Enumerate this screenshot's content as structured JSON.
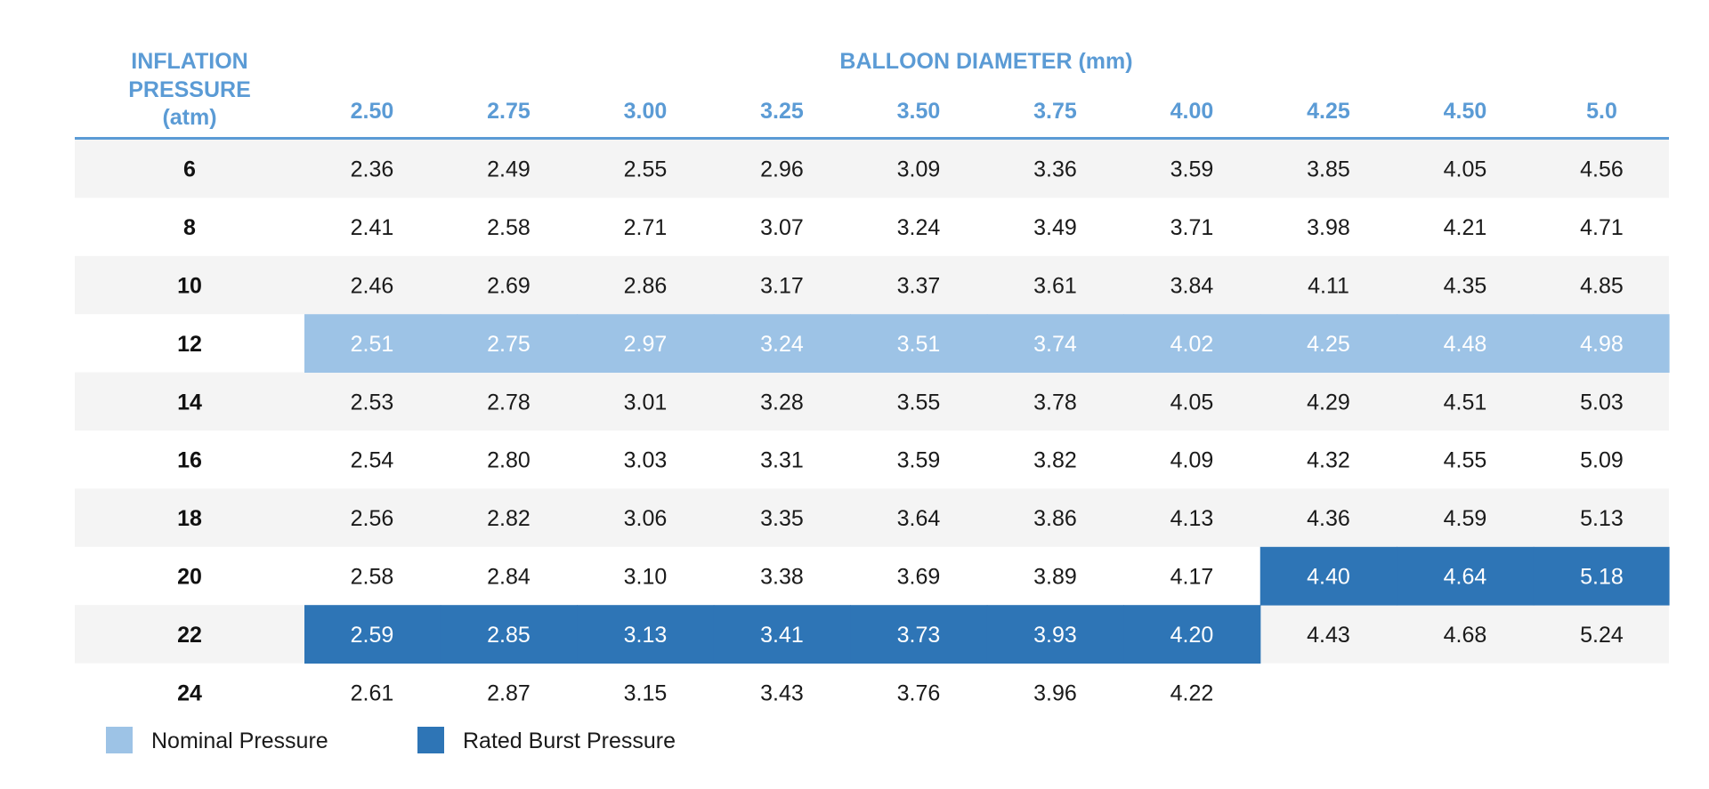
{
  "chart_data": {
    "type": "table",
    "row_header_label": [
      "INFLATION",
      "PRESSURE",
      "(atm)"
    ],
    "column_group_label": "BALLOON DIAMETER (mm)",
    "columns": [
      "2.50",
      "2.75",
      "3.00",
      "3.25",
      "3.50",
      "3.75",
      "4.00",
      "4.25",
      "4.50",
      "5.0"
    ],
    "rows": [
      {
        "pressure": "6",
        "values": [
          "2.36",
          "2.49",
          "2.55",
          "2.96",
          "3.09",
          "3.36",
          "3.59",
          "3.85",
          "4.05",
          "4.56"
        ]
      },
      {
        "pressure": "8",
        "values": [
          "2.41",
          "2.58",
          "2.71",
          "3.07",
          "3.24",
          "3.49",
          "3.71",
          "3.98",
          "4.21",
          "4.71"
        ]
      },
      {
        "pressure": "10",
        "values": [
          "2.46",
          "2.69",
          "2.86",
          "3.17",
          "3.37",
          "3.61",
          "3.84",
          "4.11",
          "4.35",
          "4.85"
        ]
      },
      {
        "pressure": "12",
        "values": [
          "2.51",
          "2.75",
          "2.97",
          "3.24",
          "3.51",
          "3.74",
          "4.02",
          "4.25",
          "4.48",
          "4.98"
        ]
      },
      {
        "pressure": "14",
        "values": [
          "2.53",
          "2.78",
          "3.01",
          "3.28",
          "3.55",
          "3.78",
          "4.05",
          "4.29",
          "4.51",
          "5.03"
        ]
      },
      {
        "pressure": "16",
        "values": [
          "2.54",
          "2.80",
          "3.03",
          "3.31",
          "3.59",
          "3.82",
          "4.09",
          "4.32",
          "4.55",
          "5.09"
        ]
      },
      {
        "pressure": "18",
        "values": [
          "2.56",
          "2.82",
          "3.06",
          "3.35",
          "3.64",
          "3.86",
          "4.13",
          "4.36",
          "4.59",
          "5.13"
        ]
      },
      {
        "pressure": "20",
        "values": [
          "2.58",
          "2.84",
          "3.10",
          "3.38",
          "3.69",
          "3.89",
          "4.17",
          "4.40",
          "4.64",
          "5.18"
        ]
      },
      {
        "pressure": "22",
        "values": [
          "2.59",
          "2.85",
          "3.13",
          "3.41",
          "3.73",
          "3.93",
          "4.20",
          "4.43",
          "4.68",
          "5.24"
        ]
      },
      {
        "pressure": "24",
        "values": [
          "2.61",
          "2.87",
          "3.15",
          "3.43",
          "3.76",
          "3.96",
          "4.22",
          null,
          null,
          null
        ]
      }
    ],
    "highlights": [
      {
        "key": "nominal",
        "cells": [
          [
            3,
            0
          ],
          [
            3,
            1
          ],
          [
            3,
            2
          ],
          [
            3,
            3
          ],
          [
            3,
            4
          ],
          [
            3,
            5
          ],
          [
            3,
            6
          ],
          [
            3,
            7
          ],
          [
            3,
            8
          ],
          [
            3,
            9
          ]
        ]
      },
      {
        "key": "rbp",
        "cells": [
          [
            7,
            7
          ],
          [
            7,
            8
          ],
          [
            7,
            9
          ],
          [
            8,
            0
          ],
          [
            8,
            1
          ],
          [
            8,
            2
          ],
          [
            8,
            3
          ],
          [
            8,
            4
          ],
          [
            8,
            5
          ],
          [
            8,
            6
          ]
        ]
      }
    ],
    "legend": [
      {
        "key": "nominal",
        "label": "Nominal Pressure",
        "color": "#9dc3e6"
      },
      {
        "key": "rbp",
        "label": "Rated Burst Pressure",
        "color": "#2e75b6"
      }
    ],
    "colors": {
      "header_text": "#5b9bd5",
      "rule": "#5b9bd5",
      "stripe": "#f4f4f4"
    }
  }
}
